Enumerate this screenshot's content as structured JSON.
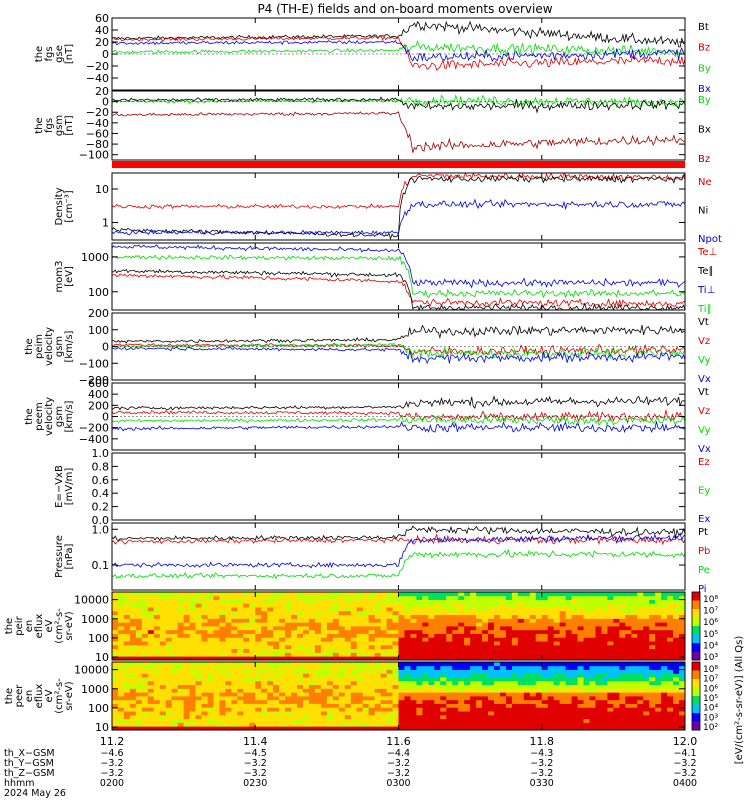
{
  "title": "P4 (TH-E) fields and on-board moments overview",
  "date_label": "2024 May 26",
  "colors": {
    "black": "#000000",
    "red": "#e00000",
    "green": "#00dd00",
    "blue": "#0000e0",
    "darkred": "#a00000"
  },
  "chart_data": [
    {
      "type": "line",
      "panel": "fgs-gse",
      "ylabel": [
        "the",
        "fgs",
        "gse",
        "[nT]"
      ],
      "ylim": [
        -60,
        60
      ],
      "yticks": [
        -40,
        -20,
        0,
        20,
        40,
        60
      ],
      "ytick_labels": [
        "−40",
        "−20",
        "0",
        "20",
        "40",
        "60"
      ],
      "x": [
        11.2,
        11.6,
        11.62,
        12.0
      ],
      "series": [
        {
          "name": "Bt",
          "color": "black",
          "values": [
            26,
            30,
            50,
            18
          ]
        },
        {
          "name": "Bz",
          "color": "red",
          "values": [
            24,
            27,
            -20,
            -10
          ]
        },
        {
          "name": "By",
          "color": "green",
          "values": [
            3,
            6,
            12,
            4
          ]
        },
        {
          "name": "Bx",
          "color": "blue",
          "values": [
            18,
            20,
            -6,
            2
          ]
        }
      ]
    },
    {
      "type": "line",
      "panel": "fgs-gsm",
      "ylabel": [
        "the",
        "fgs",
        "gsm",
        "[nT]"
      ],
      "ylim": [
        -110,
        20
      ],
      "yticks": [
        -100,
        -80,
        -60,
        -40,
        -20,
        0,
        20
      ],
      "ytick_labels": [
        "−100",
        "−80",
        "−60",
        "−40",
        "−20",
        "0",
        "20"
      ],
      "x": [
        11.2,
        11.6,
        11.62,
        12.0
      ],
      "series": [
        {
          "name": "By",
          "color": "green",
          "values": [
            0,
            2,
            3,
            -2
          ]
        },
        {
          "name": "Bx",
          "color": "black",
          "values": [
            3,
            4,
            -10,
            -5
          ]
        },
        {
          "name": "Bz",
          "color": "darkred",
          "values": [
            -25,
            -22,
            -85,
            -70
          ]
        }
      ]
    },
    {
      "type": "line",
      "panel": "density",
      "ylabel": [
        "Density",
        "[cm⁻³]"
      ],
      "yscale": "log",
      "ylim": [
        0.3,
        30
      ],
      "yticks": [
        1,
        10
      ],
      "ytick_labels": [
        "1",
        "10"
      ],
      "x": [
        11.2,
        11.6,
        11.62,
        12.0
      ],
      "series": [
        {
          "name": "Ne",
          "color": "red",
          "values": [
            3,
            3,
            25,
            22
          ]
        },
        {
          "name": "Ni",
          "color": "black",
          "values": [
            0.6,
            0.4,
            20,
            20
          ]
        },
        {
          "name": "Npot",
          "color": "blue",
          "values": [
            0.5,
            0.5,
            3.5,
            3.5
          ]
        }
      ]
    },
    {
      "type": "line",
      "panel": "temperature",
      "ylabel": [
        "mom3",
        "[eV]"
      ],
      "yscale": "log",
      "ylim": [
        30,
        2500
      ],
      "yticks": [
        100,
        1000
      ],
      "ytick_labels": [
        "100",
        "1000"
      ],
      "x": [
        11.2,
        11.6,
        11.62,
        12.0
      ],
      "series": [
        {
          "name": "Te⊥",
          "color": "red",
          "values": [
            300,
            200,
            50,
            45
          ]
        },
        {
          "name": "Te∥",
          "color": "black",
          "values": [
            400,
            300,
            35,
            35
          ]
        },
        {
          "name": "Ti⊥",
          "color": "blue",
          "values": [
            2000,
            1500,
            180,
            180
          ]
        },
        {
          "name": "Ti∥",
          "color": "green",
          "values": [
            1000,
            900,
            90,
            90
          ]
        }
      ]
    },
    {
      "type": "line",
      "panel": "peim-velocity",
      "ylabel": [
        "the",
        "peim",
        "velocity",
        "gsm",
        "[km/s]"
      ],
      "ylim": [
        -200,
        200
      ],
      "yticks": [
        -200,
        -100,
        0,
        100,
        200
      ],
      "ytick_labels": [
        "−200",
        "−100",
        "0",
        "100",
        "200"
      ],
      "x": [
        11.2,
        11.6,
        11.62,
        12.0
      ],
      "series": [
        {
          "name": "Vt",
          "color": "black",
          "values": [
            30,
            40,
            90,
            100
          ]
        },
        {
          "name": "Vz",
          "color": "red",
          "values": [
            10,
            5,
            -30,
            -20
          ]
        },
        {
          "name": "Vy",
          "color": "green",
          "values": [
            0,
            10,
            -40,
            -40
          ]
        },
        {
          "name": "Vx",
          "color": "blue",
          "values": [
            -10,
            -20,
            -70,
            -60
          ]
        }
      ]
    },
    {
      "type": "line",
      "panel": "peem-velocity",
      "ylabel": [
        "the",
        "peem",
        "velocity",
        "gsm",
        "[km/s]"
      ],
      "ylim": [
        -600,
        600
      ],
      "yticks": [
        -400,
        -200,
        0,
        200,
        400,
        600
      ],
      "ytick_labels": [
        "−400",
        "−200",
        "0",
        "200",
        "400",
        "600"
      ],
      "x": [
        11.2,
        11.6,
        11.62,
        12.0
      ],
      "series": [
        {
          "name": "Vt",
          "color": "black",
          "values": [
            150,
            170,
            250,
            280
          ]
        },
        {
          "name": "Vz",
          "color": "red",
          "values": [
            80,
            60,
            -20,
            0
          ]
        },
        {
          "name": "Vy",
          "color": "green",
          "values": [
            -80,
            -60,
            -60,
            -80
          ]
        },
        {
          "name": "Vx",
          "color": "blue",
          "values": [
            -220,
            -180,
            -200,
            -200
          ]
        }
      ]
    },
    {
      "type": "line",
      "panel": "efield",
      "ylabel": [
        "E=−VxB",
        "[mV/m]"
      ],
      "ylim": [
        0,
        1
      ],
      "yticks": [
        0,
        0.2,
        0.4,
        0.6,
        0.8,
        1.0
      ],
      "ytick_labels": [
        "0.0",
        "0.2",
        "0.4",
        "0.6",
        "0.8",
        "1.0"
      ],
      "x": [],
      "series": [
        {
          "name": "Ez",
          "color": "red",
          "values": []
        },
        {
          "name": "Ey",
          "color": "green",
          "values": []
        },
        {
          "name": "Ex",
          "color": "blue",
          "values": []
        }
      ]
    },
    {
      "type": "line",
      "panel": "pressure",
      "ylabel": [
        "Pressure",
        "[nPa]"
      ],
      "yscale": "log",
      "ylim": [
        0.02,
        1.5
      ],
      "yticks": [
        0.1,
        1.0
      ],
      "ytick_labels": [
        "0.1",
        "1.0"
      ],
      "x": [
        11.2,
        11.6,
        11.62,
        12.0
      ],
      "series": [
        {
          "name": "Pt",
          "color": "black",
          "values": [
            0.55,
            0.6,
            1.0,
            0.8
          ]
        },
        {
          "name": "Pb",
          "color": "red",
          "values": [
            0.45,
            0.5,
            0.5,
            0.5
          ]
        },
        {
          "name": "Pe",
          "color": "green",
          "values": [
            0.05,
            0.05,
            0.2,
            0.2
          ]
        },
        {
          "name": "Pi",
          "color": "blue",
          "values": [
            0.1,
            0.1,
            0.5,
            0.6
          ]
        }
      ]
    },
    {
      "type": "heatmap",
      "panel": "peir-en-eflux",
      "ylabel": [
        "the",
        "peir",
        "en",
        "eflux",
        "eV",
        "(cm²-s-",
        "sr-eV)"
      ],
      "yscale": "log",
      "ylim": [
        7,
        25000
      ],
      "yticks": [
        10,
        100,
        1000,
        10000
      ],
      "ytick_labels": [
        "10",
        "100",
        "1000",
        "10000"
      ],
      "colorbar_ticks": [
        "10⁸",
        "10⁷",
        "10⁶",
        "10⁵",
        "10⁴",
        "10³"
      ]
    },
    {
      "type": "heatmap",
      "panel": "peer-en-eflux",
      "ylabel": [
        "the",
        "peer",
        "en",
        "eflux",
        "eV",
        "(cm²-s-",
        "sr-eV)"
      ],
      "yscale": "log",
      "ylim": [
        7,
        25000
      ],
      "yticks": [
        10,
        100,
        1000,
        10000
      ],
      "ytick_labels": [
        "10",
        "100",
        "1000",
        "10000"
      ],
      "colorbar_ticks": [
        "10⁸",
        "10⁷",
        "10⁶",
        "10⁵",
        "10⁴",
        "10³",
        "10²"
      ]
    }
  ],
  "colorbar_label": "[eV/(cm²-s-sr-eV)] (All Qs)",
  "x_axis": {
    "range": [
      11.2,
      12.0
    ],
    "ticks": [
      11.2,
      11.4,
      11.6,
      11.8,
      12.0
    ],
    "tick_labels": [
      "11.2",
      "11.4",
      "11.6",
      "11.8",
      "12.0"
    ]
  },
  "annotations": [
    {
      "label": "th_X−GSM",
      "values": [
        "−4.6",
        "−4.5",
        "−4.4",
        "−4.3",
        "−4.1"
      ]
    },
    {
      "label": "th_Y−GSM",
      "values": [
        "−3.2",
        "−3.2",
        "−3.2",
        "−3.2",
        "−3.2"
      ]
    },
    {
      "label": "th_Z−GSM",
      "values": [
        "−3.2",
        "−3.2",
        "−3.2",
        "−3.2",
        "−3.2"
      ]
    },
    {
      "label": "hhmm",
      "values": [
        "0200",
        "0230",
        "0300",
        "0330",
        "0400"
      ]
    }
  ]
}
